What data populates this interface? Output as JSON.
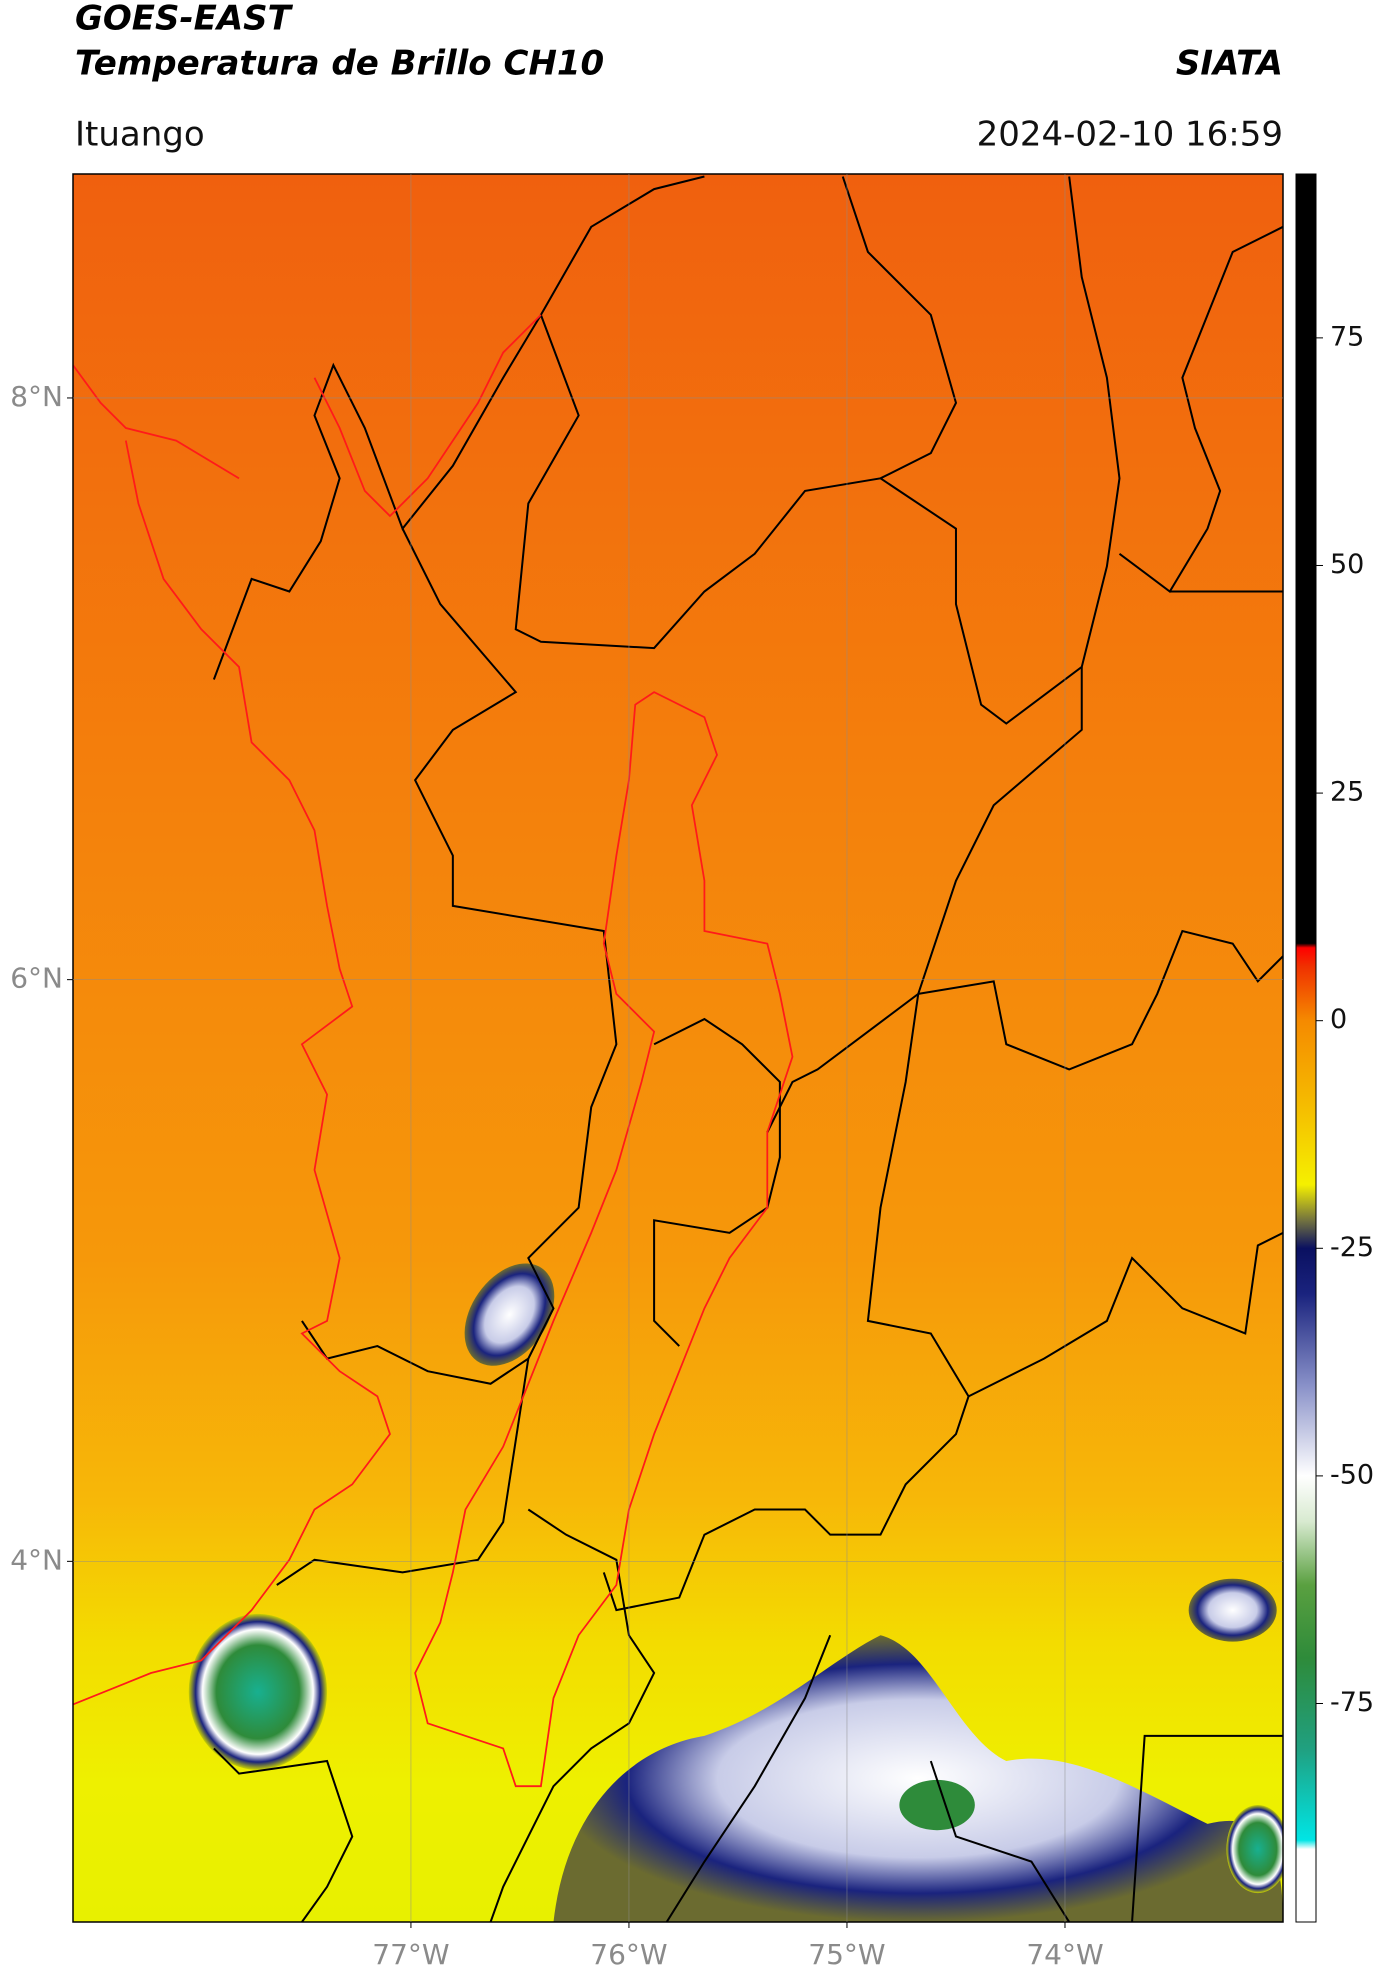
{
  "chart_data": {
    "type": "map",
    "title": "GOES-EAST",
    "subtitle": "Temperatura de Brillo CH10",
    "source": "SIATA",
    "location": "Ituango",
    "timestamp": "2024-02-10 16:59",
    "xlim": [
      -78.55,
      -73.0
    ],
    "ylim": [
      2.76,
      8.77
    ],
    "xticks": [
      {
        "value": -77,
        "label": "77°W"
      },
      {
        "value": -76,
        "label": "76°W"
      },
      {
        "value": -75,
        "label": "75°W"
      },
      {
        "value": -74,
        "label": "74°W"
      }
    ],
    "yticks": [
      {
        "value": 8,
        "label": "8°N"
      },
      {
        "value": 6,
        "label": "6°N"
      },
      {
        "value": 4,
        "label": "4°N"
      }
    ],
    "grid": true,
    "colorbar": {
      "lim": [
        -99,
        93
      ],
      "ticks": [
        75,
        50,
        25,
        0,
        -25,
        -50,
        -75
      ],
      "stops": [
        {
          "value": -99,
          "color": "#ffffff"
        },
        {
          "value": -91,
          "color": "#ffffff"
        },
        {
          "value": -90,
          "color": "#00e5e5"
        },
        {
          "value": -80,
          "color": "#20a080"
        },
        {
          "value": -70,
          "color": "#2e8b3a"
        },
        {
          "value": -62,
          "color": "#5aa040"
        },
        {
          "value": -55,
          "color": "#d8ead0"
        },
        {
          "value": -50,
          "color": "#ffffff"
        },
        {
          "value": -40,
          "color": "#8890c8"
        },
        {
          "value": -30,
          "color": "#1a237e"
        },
        {
          "value": -25,
          "color": "#0a1060"
        },
        {
          "value": -22,
          "color": "#707040"
        },
        {
          "value": -18,
          "color": "#f5f000"
        },
        {
          "value": -10,
          "color": "#f5c000"
        },
        {
          "value": 0,
          "color": "#f58a00"
        },
        {
          "value": 6,
          "color": "#f03000"
        },
        {
          "value": 8,
          "color": "#ff0000"
        },
        {
          "value": 8.5,
          "color": "#000000"
        },
        {
          "value": 93,
          "color": "#000000"
        }
      ]
    }
  }
}
